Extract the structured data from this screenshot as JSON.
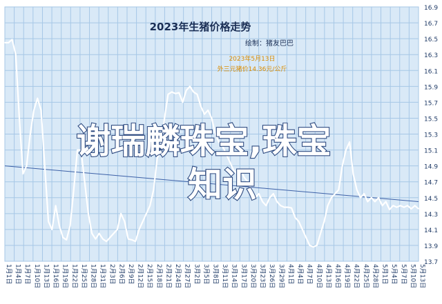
{
  "colors": {
    "background": "#ffffff",
    "plot_bg": "#d9e9f7",
    "grid": "#a6c7e6",
    "line": "#ffffff",
    "text": "#1e3a66",
    "annotation": "#d98c00",
    "ref_line": "#3b5fa6"
  },
  "chart_data": {
    "type": "line",
    "title": "2023年生猪价格走势",
    "subtitle": "绘制：猪友巴巴",
    "annotation": {
      "line1": "2023年5月13日",
      "line2": "外三元猪价14.36元/公斤"
    },
    "watermark": {
      "line1": "谢瑞麟珠宝,珠宝",
      "line2": "知识"
    },
    "ylim": [
      13.7,
      16.9
    ],
    "yticks": [
      "16.9",
      "16.7",
      "16.5",
      "16.3",
      "16.1",
      "15.9",
      "15.7",
      "15.5",
      "15.3",
      "15.1",
      "14.9",
      "14.7",
      "14.5",
      "14.3",
      "14.1",
      "13.9",
      "13.7"
    ],
    "xticks": [
      "1月1日",
      "1月4日",
      "1月7日",
      "1月10日",
      "1月13日",
      "1月16日",
      "1月19日",
      "1月22日",
      "1月25日",
      "1月28日",
      "1月31日",
      "2月3日",
      "2月6日",
      "2月9日",
      "2月12日",
      "2月15日",
      "2月18日",
      "2月21日",
      "2月24日",
      "2月27日",
      "3月2日",
      "3月5日",
      "3月8日",
      "3月11日",
      "3月14日",
      "3月17日",
      "3月20日",
      "3月23日",
      "3月26日",
      "3月29日",
      "4月1日",
      "4月4日",
      "4月7日",
      "4月10日",
      "4月13日",
      "4月16日",
      "4月19日",
      "4月22日",
      "4月25日",
      "4月28日",
      "5月1日",
      "5月4日",
      "5月7日",
      "5月10日",
      "5月13日"
    ],
    "values": [
      16.45,
      16.45,
      16.49,
      16.3,
      15.5,
      14.8,
      14.9,
      15.3,
      15.6,
      15.75,
      15.6,
      14.9,
      14.2,
      14.1,
      14.4,
      14.15,
      14.0,
      13.97,
      14.15,
      14.6,
      15.1,
      15.1,
      14.7,
      14.3,
      14.05,
      13.98,
      14.05,
      13.98,
      13.95,
      14.0,
      14.05,
      14.1,
      14.3,
      14.2,
      13.98,
      13.97,
      13.95,
      14.1,
      14.2,
      14.3,
      14.4,
      14.6,
      15.0,
      15.1,
      15.5,
      15.8,
      15.83,
      15.81,
      15.82,
      15.7,
      15.85,
      15.9,
      15.83,
      15.8,
      15.65,
      15.55,
      15.6,
      15.5,
      15.3,
      15.2,
      15.15,
      15.05,
      14.95,
      14.85,
      14.8,
      14.85,
      14.75,
      14.7,
      14.6,
      14.5,
      14.55,
      14.45,
      14.4,
      14.5,
      14.55,
      14.45,
      14.4,
      14.38,
      14.38,
      14.37,
      14.25,
      14.2,
      14.1,
      14.0,
      13.9,
      13.88,
      13.9,
      14.05,
      14.2,
      14.4,
      14.5,
      14.55,
      14.6,
      14.9,
      15.1,
      15.2,
      14.8,
      14.6,
      14.5,
      14.55,
      14.45,
      14.5,
      14.45,
      14.5,
      14.4,
      14.45,
      14.35,
      14.4,
      14.38,
      14.4,
      14.38,
      14.4,
      14.36,
      14.4,
      14.36
    ],
    "trend": [
      14.9,
      14.45
    ],
    "grid": true
  }
}
